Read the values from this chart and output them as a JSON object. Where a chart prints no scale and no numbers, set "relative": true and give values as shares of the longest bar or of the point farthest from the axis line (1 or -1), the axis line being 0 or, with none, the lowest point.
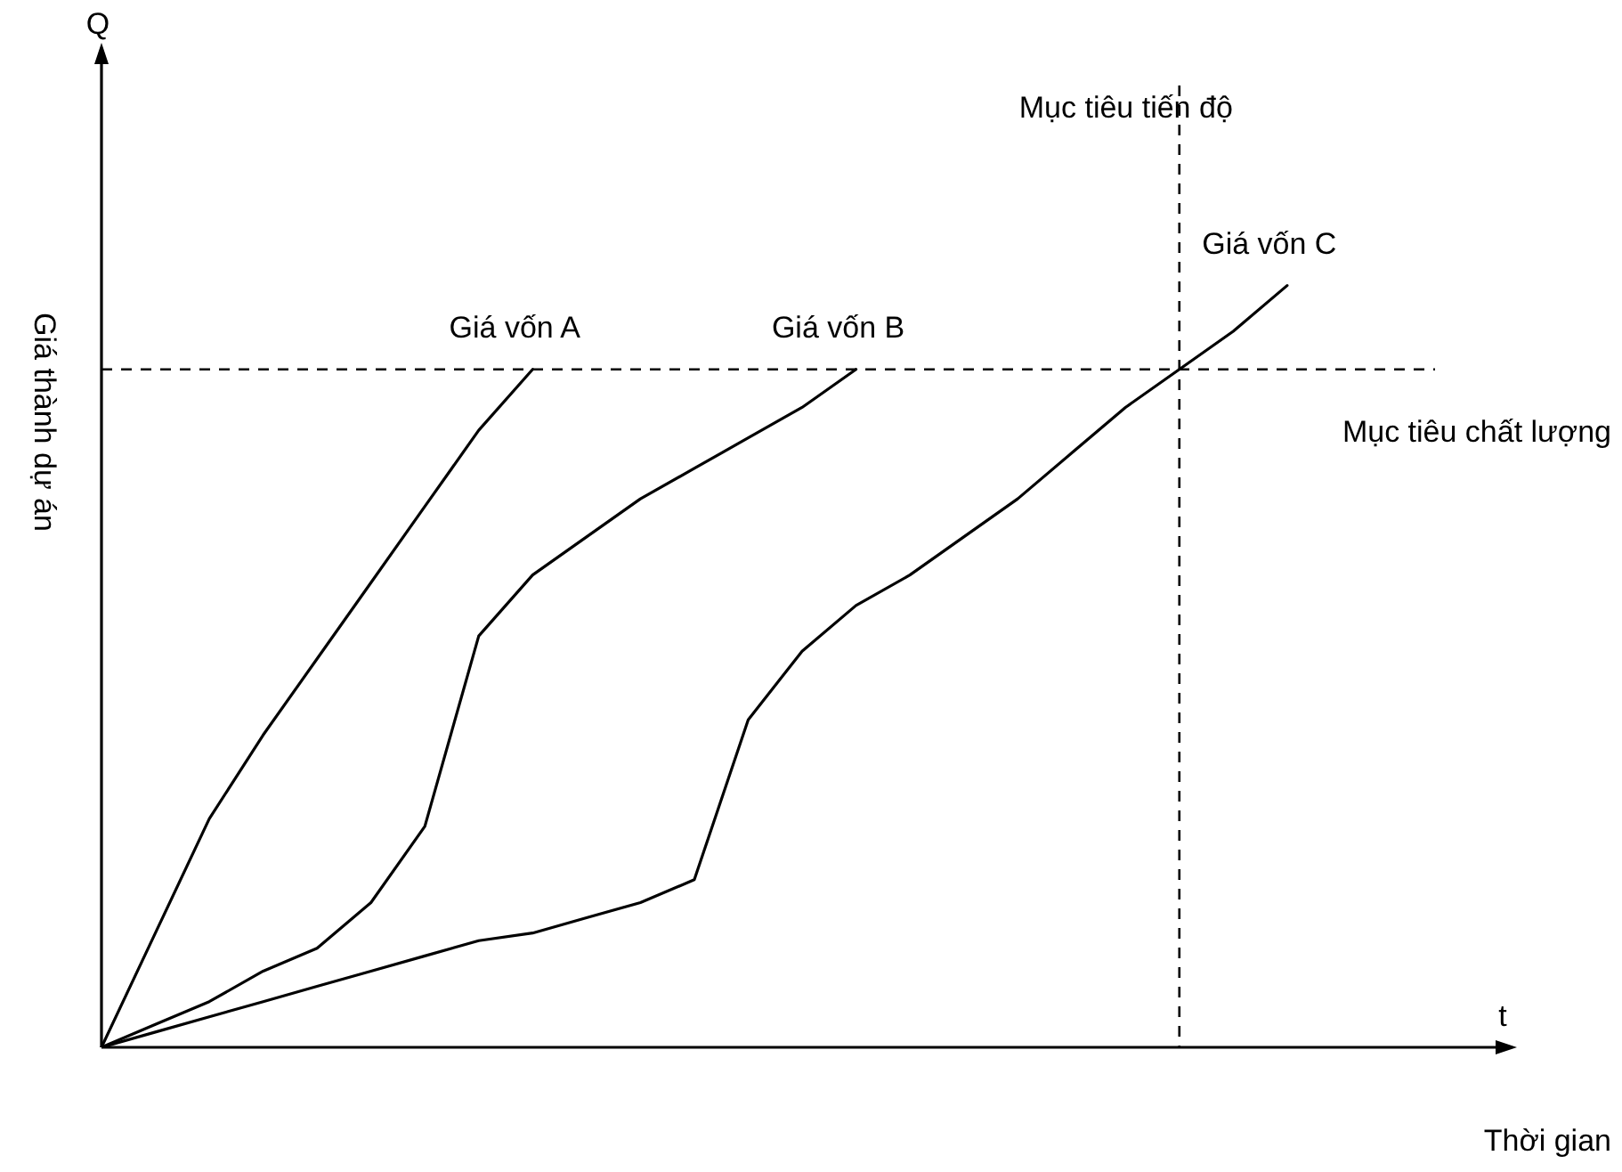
{
  "chart_data": {
    "type": "line",
    "relative": true,
    "xlabel": "Thời gian",
    "ylabel": "Giá thành dự án",
    "annotations": [
      "Q",
      "t",
      "Mục tiêu tiến độ"
    ],
    "tick_labels": false,
    "legend": false,
    "grid": false,
    "marker": "none",
    "line_style": "solid",
    "categories": [
      null,
      null,
      null,
      null,
      null,
      null,
      null,
      null,
      null,
      null,
      null,
      null,
      null,
      null,
      null,
      null,
      null,
      null,
      null,
      null,
      null,
      null,
      null,
      null,
      null,
      null,
      null
    ],
    "series": [
      {
        "name": "Giá vốn A",
        "color": "#000000",
        "values": [
          0,
          0.15,
          0.3,
          0.41,
          0.51,
          0.61,
          0.71,
          0.81,
          0.89,
          null,
          null,
          null,
          null,
          null,
          null,
          null,
          null,
          null,
          null,
          null,
          null,
          null,
          null,
          null,
          null,
          null,
          null
        ]
      },
      {
        "name": "Giá vốn B",
        "color": "#000000",
        "values": [
          0,
          0.03,
          0.06,
          0.1,
          0.13,
          0.19,
          0.29,
          0.54,
          0.62,
          0.67,
          0.72,
          0.76,
          0.8,
          0.84,
          0.89,
          null,
          null,
          null,
          null,
          null,
          null,
          null,
          null,
          null,
          null,
          null,
          null
        ]
      },
      {
        "name": "Giá vốn C",
        "color": "#000000",
        "values": [
          0,
          0.02,
          0.04,
          0.06,
          0.08,
          0.1,
          0.12,
          0.14,
          0.15,
          0.17,
          0.19,
          0.22,
          0.43,
          0.52,
          0.58,
          0.62,
          0.67,
          0.72,
          0.78,
          0.84,
          0.89,
          0.94,
          1,
          null,
          null,
          null,
          null
        ]
      }
    ],
    "ref_lines": [
      {
        "axis": "y",
        "value": 0.89,
        "label": "Mục tiêu chất lượng",
        "line_style": "dashed"
      }
    ]
  }
}
